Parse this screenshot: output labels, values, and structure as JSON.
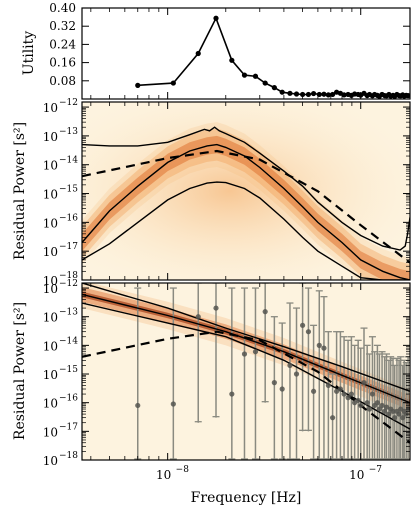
{
  "figure": {
    "xlabel": "Frequency [Hz]"
  },
  "chart_data": [
    {
      "type": "line",
      "panel": "top",
      "ylabel": "Utility",
      "xscale": "log",
      "xlim": [
        3.6e-09,
        1.8e-07
      ],
      "ylim": [
        0,
        0.4
      ],
      "yticks": [
        0.08,
        0.16,
        0.24,
        0.32,
        0.4
      ],
      "ytick_labels": [
        "0.08",
        "0.16",
        "0.24",
        "0.32",
        "0.40"
      ],
      "series": [
        {
          "x": [
            7e-09,
            1.07e-08,
            1.44e-08,
            1.78e-08,
            2.15e-08,
            2.5e-08,
            2.85e-08,
            3.2e-08,
            3.57e-08,
            3.92e-08,
            4.3e-08,
            4.65e-08,
            5e-08,
            5.36e-08,
            5.7e-08,
            6.1e-08,
            6.45e-08,
            6.8e-08,
            7.15e-08,
            7.5e-08,
            7.85e-08,
            8.2e-08,
            8.6e-08,
            8.95e-08,
            9.3e-08,
            9.7e-08,
            1e-07,
            1.04e-07,
            1.08e-07,
            1.11e-07,
            1.15e-07,
            1.18e-07,
            1.22e-07,
            1.25e-07,
            1.29e-07,
            1.33e-07,
            1.36e-07,
            1.4e-07,
            1.43e-07,
            1.47e-07,
            1.5e-07,
            1.54e-07,
            1.58e-07,
            1.61e-07,
            1.65e-07,
            1.68e-07,
            1.72e-07,
            1.76e-07
          ],
          "y": [
            0.06,
            0.07,
            0.2,
            0.355,
            0.17,
            0.105,
            0.1,
            0.07,
            0.05,
            0.03,
            0.025,
            0.022,
            0.02,
            0.02,
            0.024,
            0.02,
            0.021,
            0.018,
            0.02,
            0.03,
            0.025,
            0.018,
            0.02,
            0.016,
            0.022,
            0.02,
            0.017,
            0.025,
            0.015,
            0.02,
            0.014,
            0.02,
            0.016,
            0.012,
            0.02,
            0.015,
            0.014,
            0.02,
            0.013,
            0.016,
            0.012,
            0.02,
            0.015,
            0.014,
            0.018,
            0.013,
            0.016,
            0.015
          ]
        }
      ]
    },
    {
      "type": "line",
      "panel": "middle",
      "ylabel": "Residual Power [s²]",
      "xscale": "log",
      "yscale": "log",
      "xlim": [
        3.6e-09,
        1.8e-07
      ],
      "ylim": [
        1e-18,
        1.5e-12
      ],
      "yticks": [
        1e-18,
        1e-17,
        1e-16,
        1e-15,
        1e-14,
        1e-13,
        1e-12
      ],
      "ytick_labels": [
        "10",
        "10",
        "10",
        "10",
        "10",
        "10",
        "10"
      ],
      "ytick_exponents": [
        "−18",
        "−17",
        "−16",
        "−15",
        "−14",
        "−13",
        "−12"
      ],
      "series": [
        {
          "role": "median",
          "x": [
            3.6e-09,
            5e-09,
            7e-09,
            1e-08,
            1.3e-08,
            1.6e-08,
            1.8e-08,
            2e-08,
            2.5e-08,
            3e-08,
            4e-08,
            5e-08,
            6e-08,
            8e-08,
            1e-07,
            1.3e-07,
            1.6e-07,
            1.8e-07
          ],
          "y": [
            2e-17,
            2.5e-16,
            1.8e-15,
            1.2e-14,
            3e-14,
            4.5e-14,
            5e-14,
            4e-14,
            2e-14,
            8e-15,
            1.5e-15,
            3.5e-16,
            1e-16,
            2e-17,
            5e-18,
            2e-18,
            1.2e-18,
            1e-18
          ]
        },
        {
          "role": "upper",
          "x": [
            3.6e-09,
            5e-09,
            7e-09,
            1e-08,
            1.3e-08,
            1.55e-08,
            1.65e-08,
            1.75e-08,
            1.85e-08,
            2e-08,
            2.5e-08,
            3e-08,
            4e-08,
            5e-08,
            6e-08,
            8e-08,
            1e-07,
            1.3e-07,
            1.6e-07,
            1.7e-07,
            1.75e-07,
            1.8e-07
          ],
          "y": [
            5e-14,
            4.5e-14,
            4.5e-14,
            6e-14,
            1.1e-13,
            1.7e-13,
            1.5e-13,
            2e-13,
            1.5e-13,
            1.2e-13,
            6e-14,
            2.5e-14,
            6e-15,
            1.8e-15,
            5e-16,
            1e-16,
            3.5e-17,
            1.5e-17,
            1.1e-17,
            1.5e-17,
            4e-17,
            1.5e-16
          ]
        },
        {
          "role": "lower",
          "x": [
            3.6e-09,
            5e-09,
            7e-09,
            1e-08,
            1.3e-08,
            1.6e-08,
            1.8e-08,
            2e-08,
            2.5e-08,
            3e-08,
            4e-08,
            5e-08,
            6e-08,
            8e-08,
            1e-07,
            1.3e-07,
            1.6e-07,
            1.8e-07
          ],
          "y": [
            5e-18,
            1.8e-17,
            1e-16,
            6e-16,
            1.5e-15,
            2.3e-15,
            2.5e-15,
            2.4e-15,
            1.5e-15,
            7e-16,
            1.3e-16,
            3e-17,
            1e-17,
            3e-18,
            1.2e-18,
            1e-18,
            1e-18,
            1e-18
          ]
        },
        {
          "role": "dashed",
          "x": [
            3.6e-09,
            1e-08,
            1.8e-08,
            3e-08,
            6e-08,
            1e-07,
            1.8e-07
          ],
          "y": [
            4e-15,
            1.7e-14,
            3e-14,
            1.5e-14,
            1.2e-15,
            8e-17,
            4e-18
          ]
        }
      ]
    },
    {
      "type": "scatter",
      "panel": "bottom",
      "ylabel": "Residual Power [s²]",
      "xscale": "log",
      "yscale": "log",
      "xlim": [
        3.6e-09,
        1.8e-07
      ],
      "ylim": [
        1e-18,
        1.5e-12
      ],
      "yticks": [
        1e-18,
        1e-17,
        1e-16,
        1e-15,
        1e-14,
        1e-13,
        1e-12
      ],
      "ytick_labels": [
        "10",
        "10",
        "10",
        "10",
        "10",
        "10",
        "10"
      ],
      "ytick_exponents": [
        "−18",
        "−17",
        "−16",
        "−15",
        "−14",
        "−13",
        "−12"
      ],
      "xticks": [
        1e-08,
        1e-07
      ],
      "xtick_labels": [
        "10",
        "10"
      ],
      "xtick_exponents": [
        "−8",
        "−7"
      ],
      "lines": [
        {
          "role": "median",
          "x": [
            3.6e-09,
            1e-08,
            2e-08,
            4e-08,
            8e-08,
            1.8e-07
          ],
          "y": [
            6e-13,
            1.1e-13,
            3e-14,
            6e-15,
            9e-16,
            1e-16
          ]
        },
        {
          "role": "upper",
          "x": [
            3.6e-09,
            1e-08,
            2e-08,
            4e-08,
            8e-08,
            1.8e-07
          ],
          "y": [
            1.5e-12,
            2e-13,
            4e-14,
            9e-15,
            1.8e-15,
            2.5e-16
          ]
        },
        {
          "role": "lower",
          "x": [
            3.6e-09,
            1e-08,
            2e-08,
            4e-08,
            8e-08,
            1.8e-07
          ],
          "y": [
            3e-13,
            6e-14,
            2e-14,
            3e-15,
            2.5e-16,
            1.2e-17
          ]
        },
        {
          "role": "dashed",
          "x": [
            3.6e-09,
            1e-08,
            1.8e-08,
            3e-08,
            6e-08,
            1e-07,
            1.8e-07
          ],
          "y": [
            4e-15,
            1.7e-14,
            3e-14,
            1.5e-14,
            1.2e-15,
            8e-17,
            4e-18
          ]
        }
      ],
      "points": {
        "x": [
          7e-09,
          1.07e-08,
          1.44e-08,
          1.78e-08,
          2.15e-08,
          2.5e-08,
          2.85e-08,
          3.2e-08,
          3.57e-08,
          3.92e-08,
          4.3e-08,
          4.65e-08,
          5e-08,
          5.36e-08,
          5.7e-08,
          6.1e-08,
          6.45e-08,
          6.8e-08,
          7.15e-08,
          7.5e-08,
          7.85e-08,
          8.2e-08,
          8.6e-08,
          8.95e-08,
          9.3e-08,
          9.7e-08,
          1e-07,
          1.04e-07,
          1.08e-07,
          1.11e-07,
          1.15e-07,
          1.18e-07,
          1.22e-07,
          1.25e-07,
          1.29e-07,
          1.33e-07,
          1.36e-07,
          1.4e-07,
          1.43e-07,
          1.47e-07,
          1.5e-07,
          1.54e-07,
          1.58e-07,
          1.61e-07,
          1.65e-07,
          1.68e-07,
          1.72e-07,
          1.76e-07
        ],
        "y": [
          8e-17,
          9e-17,
          1e-13,
          2e-13,
          2e-16,
          5e-15,
          6e-15,
          1.5e-13,
          5e-16,
          3e-16,
          2e-15,
          1e-15,
          5e-14,
          3e-14,
          2.5e-16,
          1e-14,
          8e-15,
          4e-16,
          3e-17,
          2.5e-16,
          3e-16,
          2e-16,
          1.5e-16,
          2e-16,
          1e-16,
          1.2e-16,
          8e-17,
          5e-16,
          1e-16,
          6e-17,
          2e-16,
          8e-17,
          1e-16,
          6e-17,
          8e-17,
          5e-17,
          7e-17,
          4e-17,
          6e-17,
          5e-17,
          3e-17,
          5e-17,
          4e-17,
          6e-17,
          3e-17,
          5e-17,
          4e-17,
          6e-17
        ],
        "err_lo": [
          1e-18,
          1e-18,
          2e-17,
          3e-17,
          1e-18,
          1e-18,
          1e-18,
          1e-16,
          1e-18,
          1e-18,
          1e-18,
          1e-18,
          1e-17,
          1e-17,
          1e-18,
          1e-18,
          1e-18,
          1e-18,
          1e-18,
          1e-18,
          1e-18,
          1e-18,
          1e-18,
          1e-18,
          1e-18,
          1e-18,
          1e-18,
          1e-18,
          1e-18,
          1e-18,
          1e-18,
          1e-18,
          1e-18,
          1e-18,
          1e-18,
          1e-18,
          1e-18,
          1e-18,
          1e-18,
          1e-18,
          1e-18,
          1e-18,
          1e-18,
          1e-18,
          1e-18,
          1e-18,
          1e-18,
          1e-18
        ],
        "err_hi": [
          1e-12,
          1e-12,
          1.5e-12,
          1.5e-12,
          1e-12,
          1e-12,
          1e-12,
          1.5e-12,
          1e-13,
          6e-14,
          3e-13,
          2e-13,
          1.5e-12,
          1e-12,
          5e-14,
          8e-13,
          5e-13,
          3e-14,
          1e-15,
          3e-14,
          3e-14,
          2e-14,
          1.5e-14,
          2e-14,
          1e-14,
          1.5e-14,
          8e-15,
          4e-14,
          1e-14,
          5e-15,
          2e-14,
          6e-15,
          1e-14,
          5e-15,
          6e-15,
          4e-15,
          5e-15,
          3e-15,
          4e-15,
          3.5e-15,
          2e-15,
          3.5e-15,
          3e-15,
          4e-15,
          2e-15,
          3e-15,
          2.5e-15,
          4e-15
        ]
      }
    }
  ]
}
